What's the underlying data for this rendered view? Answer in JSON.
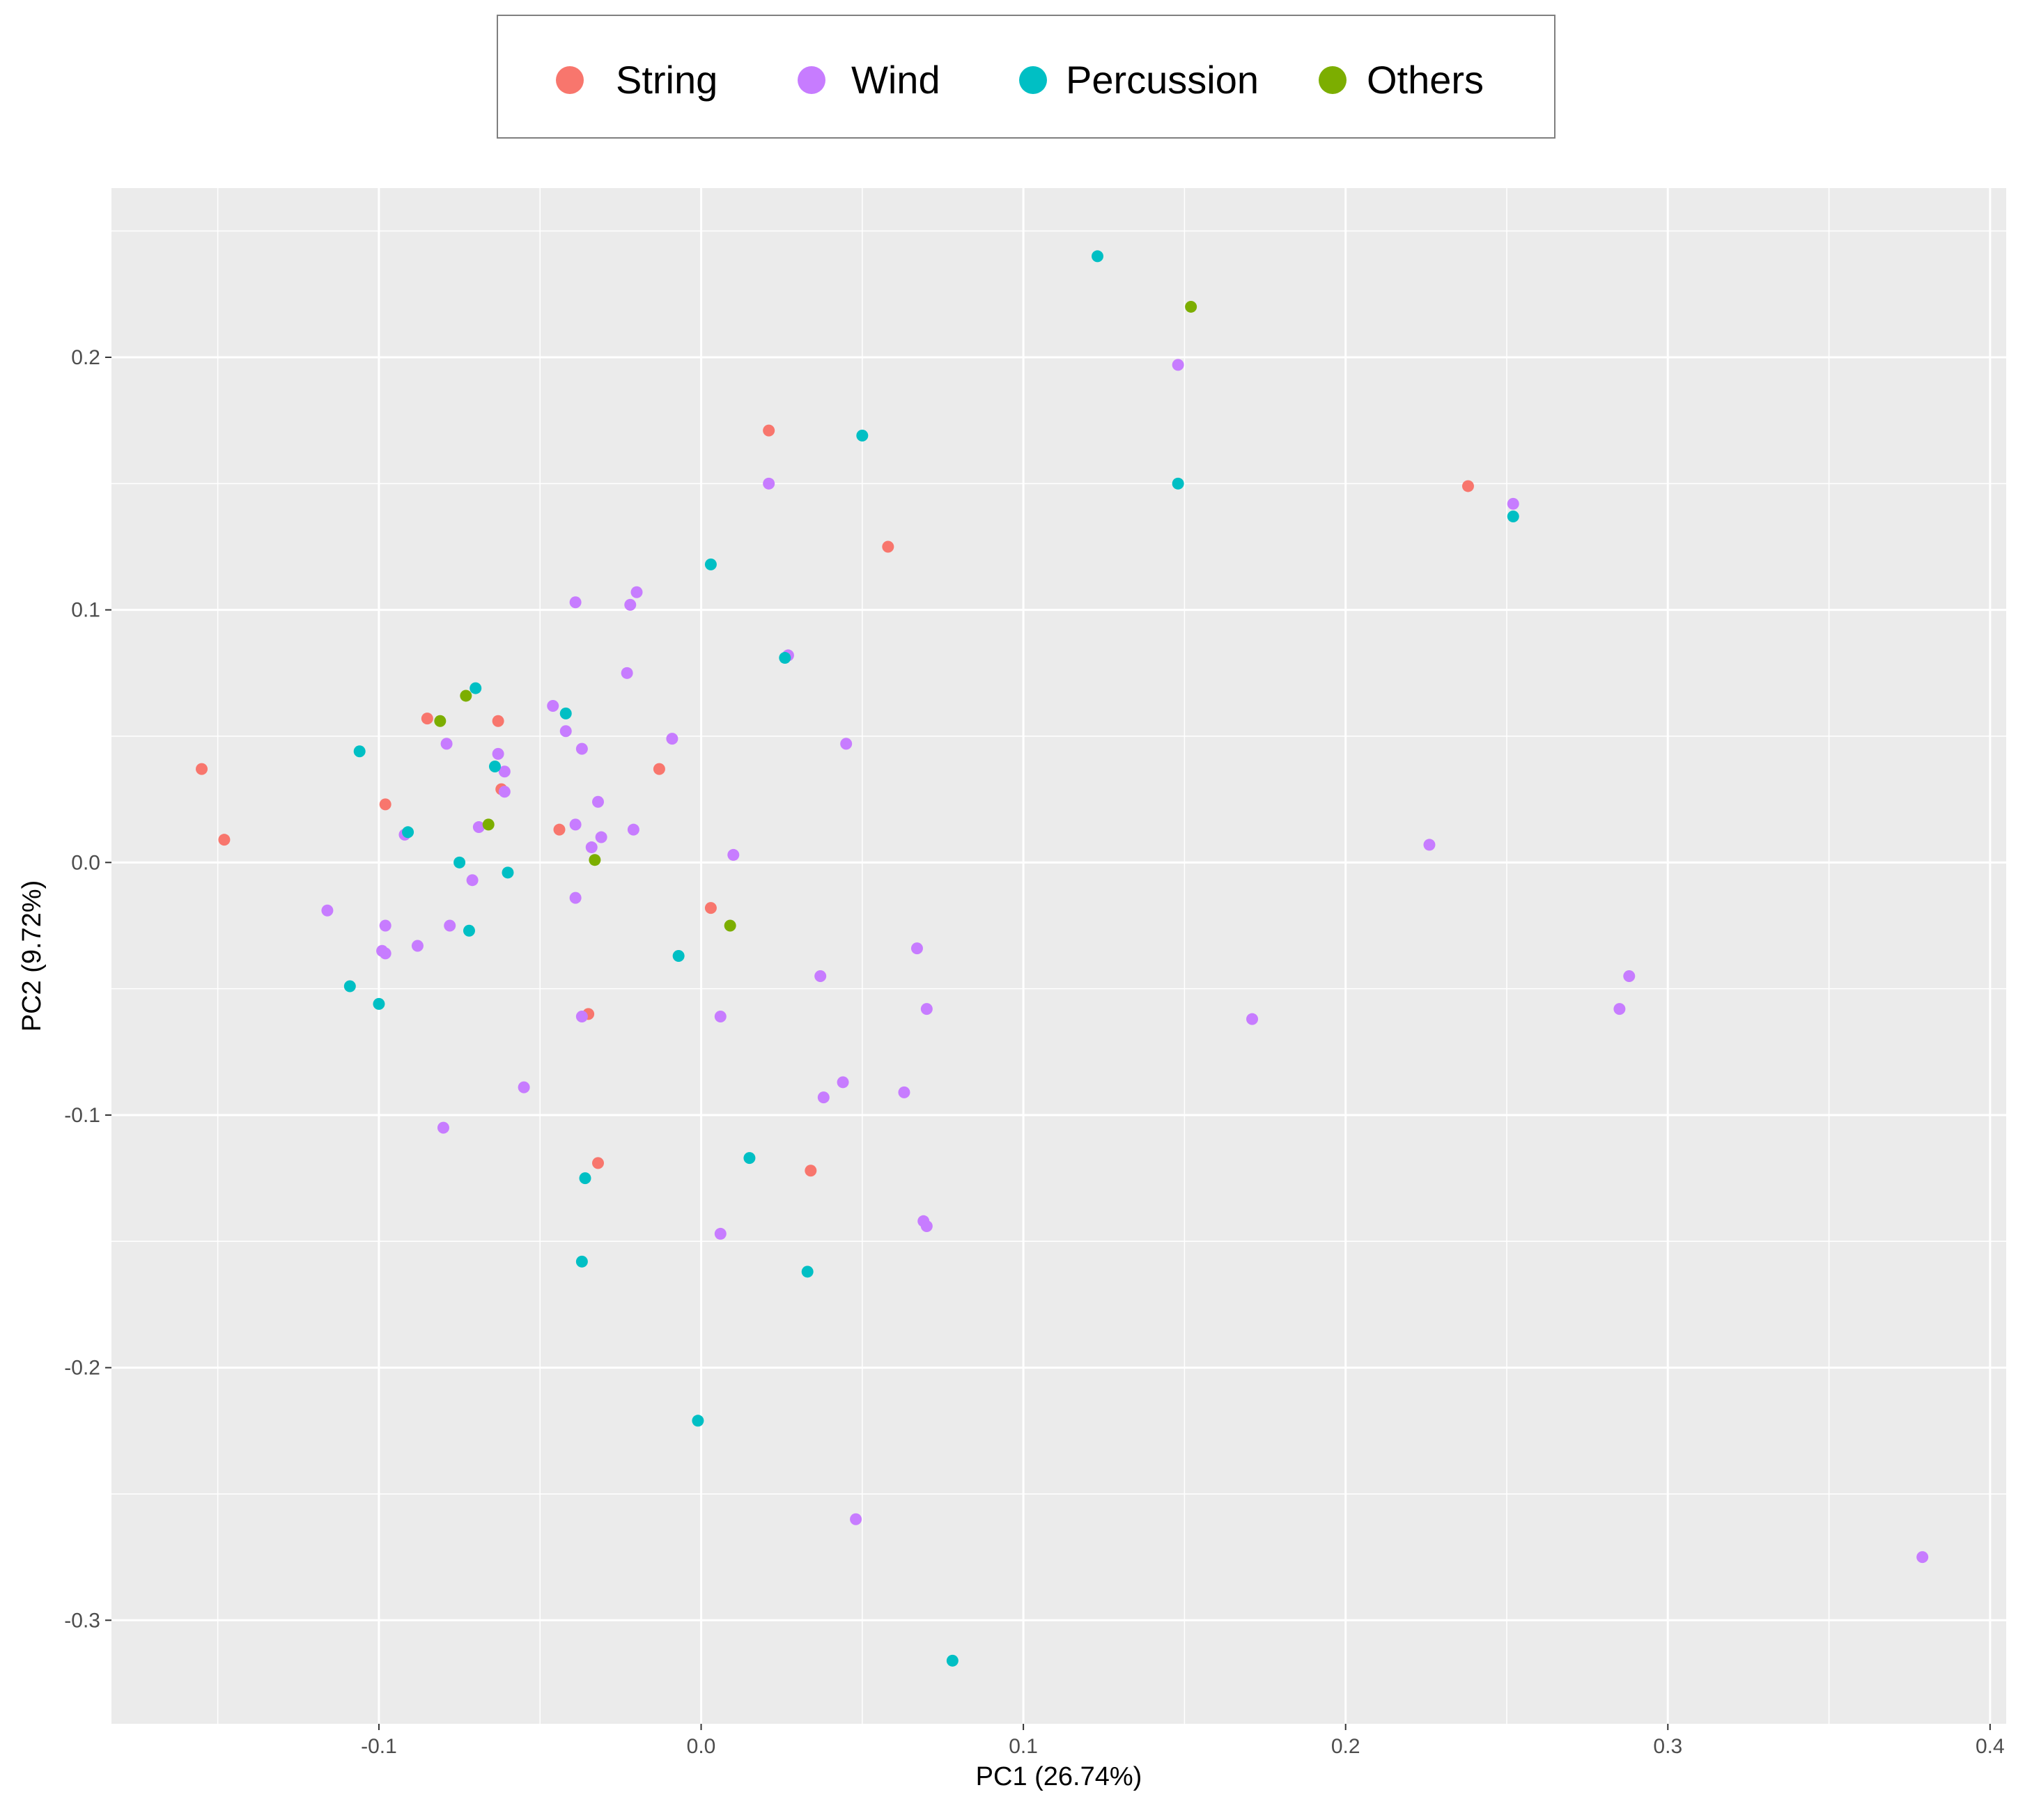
{
  "chart_data": {
    "type": "scatter",
    "title": "",
    "xlabel": "PC1 (26.74%)",
    "ylabel": "PC2 (9.72%)",
    "xlim": [
      -0.183,
      0.405
    ],
    "ylim": [
      -0.341,
      0.267
    ],
    "x_ticks": [
      -0.1,
      0.0,
      0.1,
      0.2,
      0.3,
      0.4
    ],
    "x_tick_labels": [
      "-0.1",
      "0.0",
      "0.1",
      "0.2",
      "0.3",
      "0.4"
    ],
    "y_ticks": [
      -0.3,
      -0.2,
      -0.1,
      0.0,
      0.1,
      0.2
    ],
    "y_tick_labels": [
      "-0.3",
      "-0.2",
      "-0.1",
      "0.0",
      "0.1",
      "0.2"
    ],
    "grid": true,
    "legend_position": "top",
    "series": [
      {
        "name": "String",
        "color": "#F8766D",
        "points": [
          [
            -0.155,
            0.037
          ],
          [
            -0.148,
            0.009
          ],
          [
            -0.098,
            0.023
          ],
          [
            -0.085,
            0.057
          ],
          [
            -0.063,
            0.056
          ],
          [
            -0.062,
            0.029
          ],
          [
            -0.044,
            0.013
          ],
          [
            -0.013,
            0.037
          ],
          [
            0.003,
            -0.018
          ],
          [
            -0.035,
            -0.06
          ],
          [
            -0.032,
            -0.119
          ],
          [
            0.021,
            0.171
          ],
          [
            0.058,
            0.125
          ],
          [
            0.034,
            -0.122
          ],
          [
            0.238,
            0.149
          ]
        ]
      },
      {
        "name": "Wind",
        "color": "#C77CFF",
        "points": [
          [
            -0.116,
            -0.019
          ],
          [
            -0.098,
            -0.025
          ],
          [
            -0.099,
            -0.035
          ],
          [
            -0.098,
            -0.036
          ],
          [
            -0.088,
            -0.033
          ],
          [
            -0.092,
            0.011
          ],
          [
            -0.079,
            0.047
          ],
          [
            -0.078,
            -0.025
          ],
          [
            -0.071,
            -0.007
          ],
          [
            -0.069,
            0.014
          ],
          [
            -0.063,
            0.043
          ],
          [
            -0.061,
            0.036
          ],
          [
            -0.061,
            0.028
          ],
          [
            -0.08,
            -0.105
          ],
          [
            -0.055,
            -0.089
          ],
          [
            -0.046,
            0.062
          ],
          [
            -0.042,
            0.052
          ],
          [
            -0.039,
            0.103
          ],
          [
            -0.037,
            0.045
          ],
          [
            -0.039,
            0.015
          ],
          [
            -0.039,
            -0.014
          ],
          [
            -0.037,
            -0.061
          ],
          [
            -0.034,
            0.006
          ],
          [
            -0.032,
            0.024
          ],
          [
            -0.031,
            0.01
          ],
          [
            -0.022,
            0.102
          ],
          [
            -0.02,
            0.107
          ],
          [
            -0.023,
            0.075
          ],
          [
            -0.021,
            0.013
          ],
          [
            -0.009,
            0.049
          ],
          [
            0.021,
            0.15
          ],
          [
            0.027,
            0.082
          ],
          [
            0.01,
            0.003
          ],
          [
            0.006,
            -0.061
          ],
          [
            0.006,
            -0.147
          ],
          [
            0.045,
            0.047
          ],
          [
            0.037,
            -0.045
          ],
          [
            0.038,
            -0.093
          ],
          [
            0.044,
            -0.087
          ],
          [
            0.067,
            -0.034
          ],
          [
            0.07,
            -0.058
          ],
          [
            0.063,
            -0.091
          ],
          [
            0.069,
            -0.142
          ],
          [
            0.07,
            -0.144
          ],
          [
            0.048,
            -0.26
          ],
          [
            0.148,
            0.197
          ],
          [
            0.171,
            -0.062
          ],
          [
            0.226,
            0.007
          ],
          [
            0.252,
            0.142
          ],
          [
            0.285,
            -0.058
          ],
          [
            0.288,
            -0.045
          ],
          [
            0.379,
            -0.275
          ]
        ]
      },
      {
        "name": "Percussion",
        "color": "#00BFC4",
        "points": [
          [
            -0.106,
            0.044
          ],
          [
            -0.091,
            0.012
          ],
          [
            -0.075,
            0.0
          ],
          [
            -0.07,
            0.069
          ],
          [
            -0.064,
            0.038
          ],
          [
            -0.06,
            -0.004
          ],
          [
            -0.072,
            -0.027
          ],
          [
            -0.109,
            -0.049
          ],
          [
            -0.1,
            -0.056
          ],
          [
            -0.042,
            0.059
          ],
          [
            -0.036,
            -0.125
          ],
          [
            -0.037,
            -0.158
          ],
          [
            -0.007,
            -0.037
          ],
          [
            0.003,
            0.118
          ],
          [
            0.026,
            0.081
          ],
          [
            0.015,
            -0.117
          ],
          [
            0.033,
            -0.162
          ],
          [
            -0.001,
            -0.221
          ],
          [
            0.078,
            -0.316
          ],
          [
            0.05,
            0.169
          ],
          [
            0.123,
            0.24
          ],
          [
            0.148,
            0.15
          ],
          [
            0.252,
            0.137
          ]
        ]
      },
      {
        "name": "Others",
        "color": "#7CAE00",
        "points": [
          [
            -0.073,
            0.066
          ],
          [
            -0.081,
            0.056
          ],
          [
            -0.066,
            0.015
          ],
          [
            -0.033,
            0.001
          ],
          [
            0.009,
            -0.025
          ],
          [
            0.152,
            0.22
          ]
        ]
      }
    ]
  }
}
